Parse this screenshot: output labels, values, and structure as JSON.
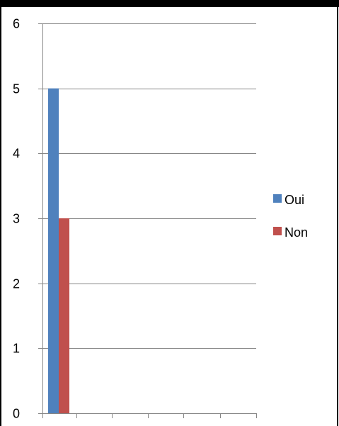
{
  "chart_data": {
    "type": "bar",
    "categories": [
      ""
    ],
    "series": [
      {
        "name": "Oui",
        "values": [
          5
        ],
        "color": "#4F81BD"
      },
      {
        "name": "Non",
        "values": [
          3
        ],
        "color": "#C0504D"
      }
    ],
    "title": "",
    "xlabel": "",
    "ylabel": "",
    "ylim": [
      0,
      6
    ],
    "yticks": [
      "0",
      "1",
      "2",
      "3",
      "4",
      "5",
      "6"
    ],
    "grid": true,
    "legend_position": "right"
  }
}
